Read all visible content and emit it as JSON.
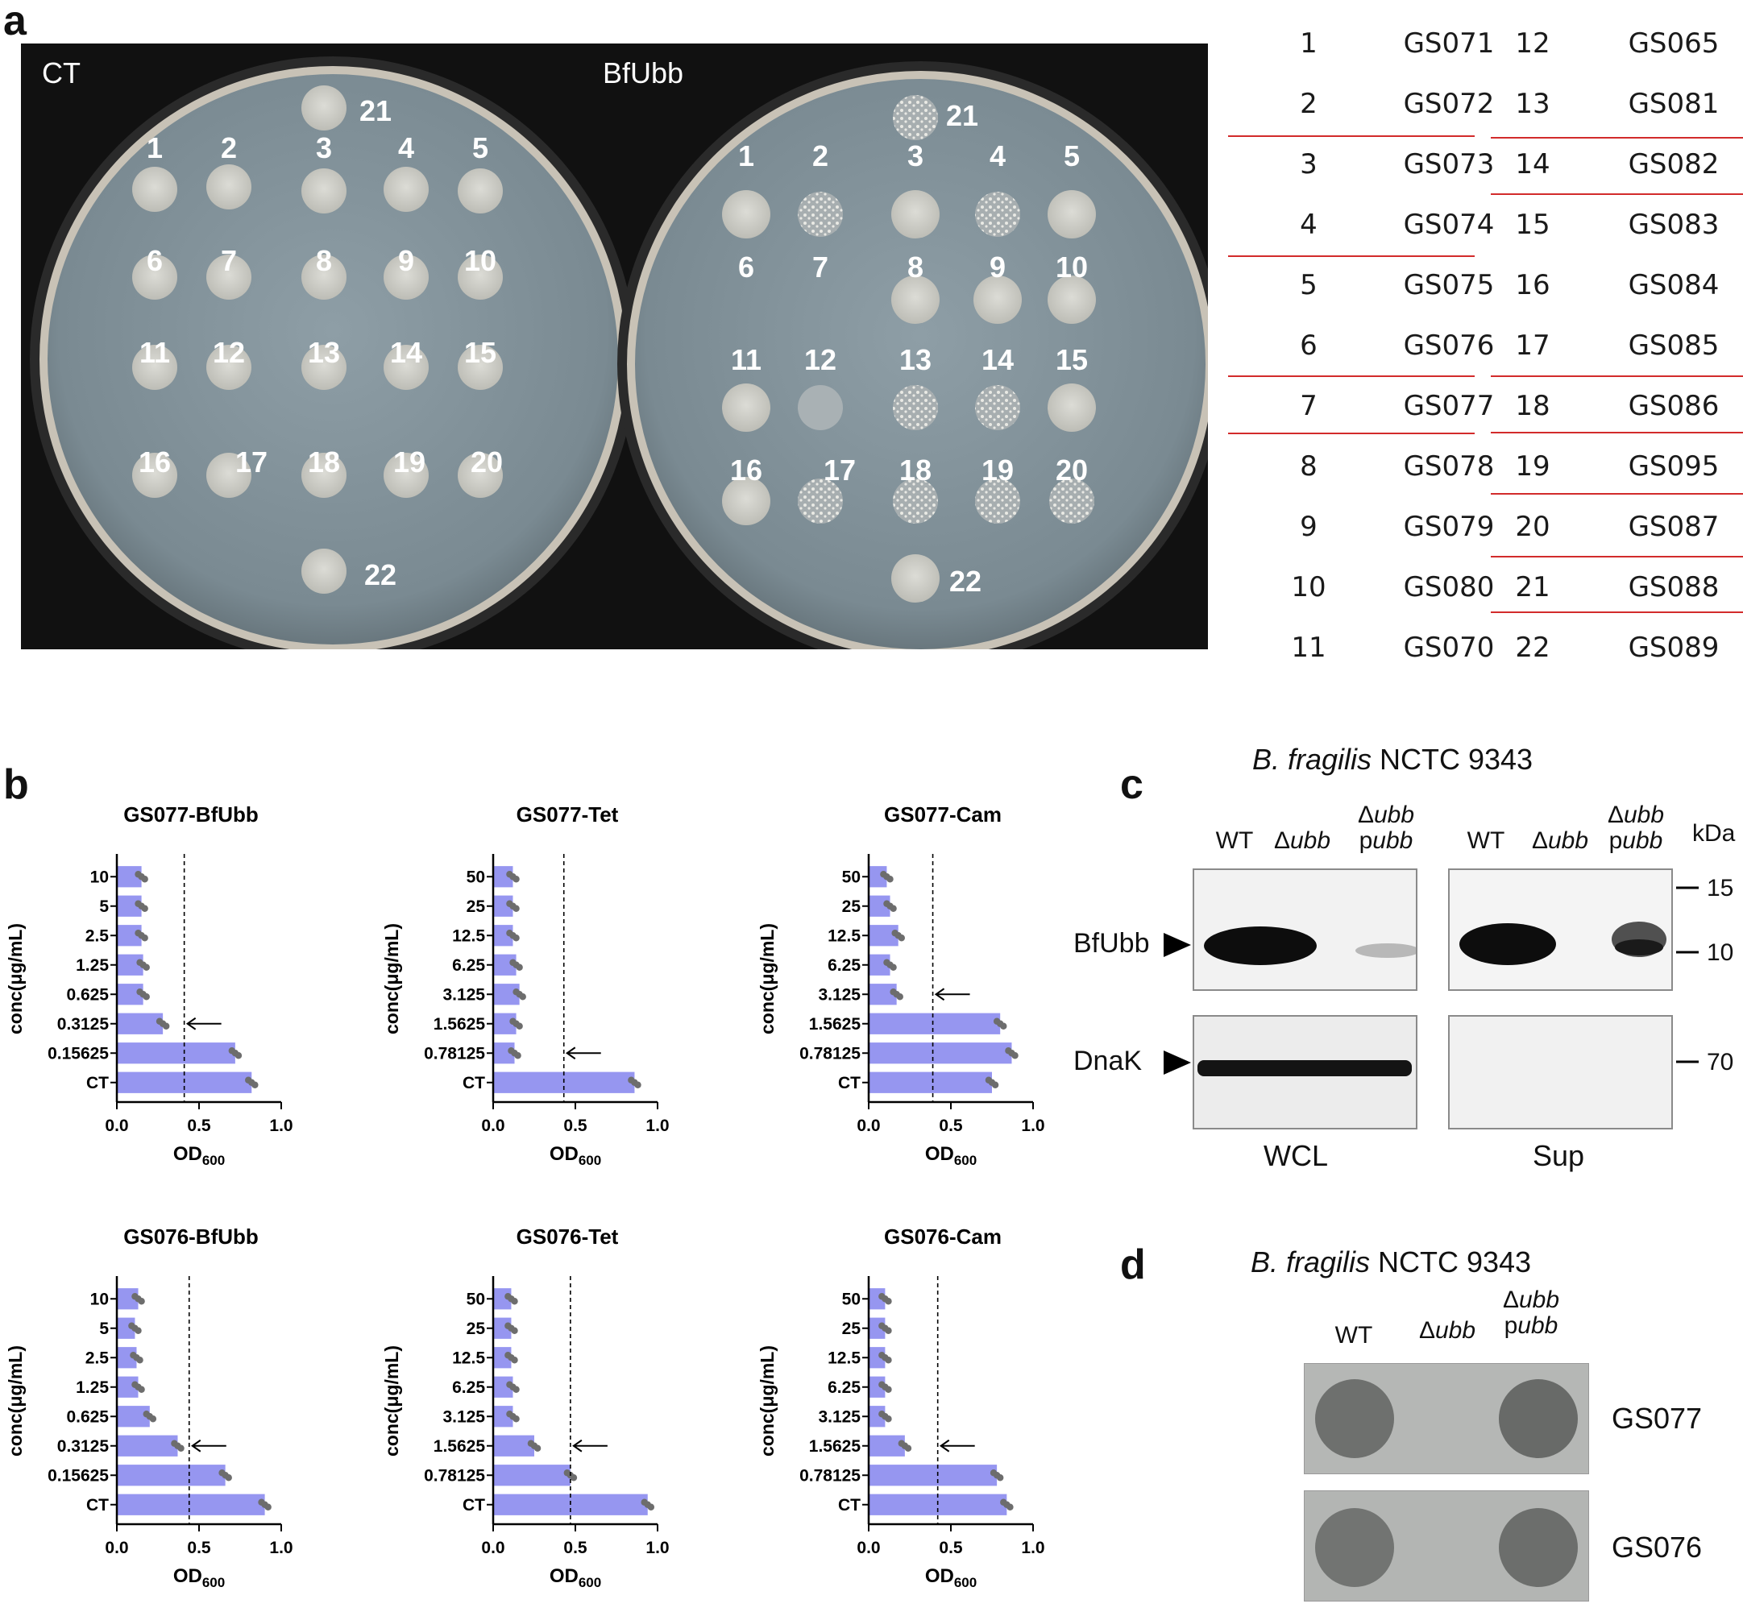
{
  "panels": {
    "a": "a",
    "b": "b",
    "c": "c",
    "d": "d"
  },
  "panel_a": {
    "plate_labels": [
      "CT",
      "BfUbb"
    ],
    "spot_numbers": [
      "1",
      "2",
      "3",
      "4",
      "5",
      "6",
      "7",
      "8",
      "9",
      "10",
      "11",
      "12",
      "13",
      "14",
      "15",
      "16",
      "17",
      "18",
      "19",
      "20",
      "21",
      "22"
    ],
    "legend": [
      {
        "num": "1",
        "id": "GS071"
      },
      {
        "num": "2",
        "id": "GS072"
      },
      {
        "num": "3",
        "id": "GS073"
      },
      {
        "num": "4",
        "id": "GS074"
      },
      {
        "num": "5",
        "id": "GS075"
      },
      {
        "num": "6",
        "id": "GS076"
      },
      {
        "num": "7",
        "id": "GS077"
      },
      {
        "num": "8",
        "id": "GS078"
      },
      {
        "num": "9",
        "id": "GS079"
      },
      {
        "num": "10",
        "id": "GS080"
      },
      {
        "num": "11",
        "id": "GS070"
      },
      {
        "num": "12",
        "id": "GS065"
      },
      {
        "num": "13",
        "id": "GS081"
      },
      {
        "num": "14",
        "id": "GS082"
      },
      {
        "num": "15",
        "id": "GS083"
      },
      {
        "num": "16",
        "id": "GS084"
      },
      {
        "num": "17",
        "id": "GS085"
      },
      {
        "num": "18",
        "id": "GS086"
      },
      {
        "num": "19",
        "id": "GS095"
      },
      {
        "num": "20",
        "id": "GS087"
      },
      {
        "num": "21",
        "id": "GS088"
      },
      {
        "num": "22",
        "id": "GS089"
      }
    ],
    "line_color": "#d22b2b"
  },
  "chart_data": [
    {
      "type": "bar",
      "orientation": "horizontal",
      "title": "GS077-BfUbb",
      "categories": [
        "10",
        "5",
        "2.5",
        "1.25",
        "0.625",
        "0.3125",
        "0.15625",
        "CT"
      ],
      "values": [
        0.15,
        0.15,
        0.15,
        0.16,
        0.16,
        0.28,
        0.72,
        0.82
      ],
      "ylabel": "conc(μg/mL)",
      "xlabel": "OD",
      "xlabel_sub": "600",
      "xlim": [
        0,
        1
      ],
      "xticks": [
        "0.0",
        "0.5",
        "1.0"
      ],
      "threshold": 0.41,
      "arrow_index": 5,
      "bar_color": "#9696f0"
    },
    {
      "type": "bar",
      "orientation": "horizontal",
      "title": "GS077-Tet",
      "categories": [
        "50",
        "25",
        "12.5",
        "6.25",
        "3.125",
        "1.5625",
        "0.78125",
        "CT"
      ],
      "values": [
        0.12,
        0.12,
        0.12,
        0.14,
        0.16,
        0.14,
        0.13,
        0.86
      ],
      "ylabel": "conc(μg/mL)",
      "xlabel": "OD",
      "xlabel_sub": "600",
      "xlim": [
        0,
        1
      ],
      "xticks": [
        "0.0",
        "0.5",
        "1.0"
      ],
      "threshold": 0.43,
      "arrow_index": 6,
      "bar_color": "#9696f0"
    },
    {
      "type": "bar",
      "orientation": "horizontal",
      "title": "GS077-Cam",
      "categories": [
        "50",
        "25",
        "12.5",
        "6.25",
        "3.125",
        "1.5625",
        "0.78125",
        "CT"
      ],
      "values": [
        0.11,
        0.13,
        0.18,
        0.13,
        0.17,
        0.8,
        0.87,
        0.75
      ],
      "ylabel": "conc(μg/mL)",
      "xlabel": "OD",
      "xlabel_sub": "600",
      "xlim": [
        0,
        1
      ],
      "xticks": [
        "0.0",
        "0.5",
        "1.0"
      ],
      "threshold": 0.39,
      "arrow_index": 4,
      "bar_color": "#9696f0"
    },
    {
      "type": "bar",
      "orientation": "horizontal",
      "title": "GS076-BfUbb",
      "categories": [
        "10",
        "5",
        "2.5",
        "1.25",
        "0.625",
        "0.3125",
        "0.15625",
        "CT"
      ],
      "values": [
        0.13,
        0.11,
        0.12,
        0.13,
        0.2,
        0.37,
        0.66,
        0.9
      ],
      "ylabel": "conc(μg/mL)",
      "xlabel": "OD",
      "xlabel_sub": "600",
      "xlim": [
        0,
        1
      ],
      "xticks": [
        "0.0",
        "0.5",
        "1.0"
      ],
      "threshold": 0.44,
      "arrow_index": 5,
      "bar_color": "#9696f0"
    },
    {
      "type": "bar",
      "orientation": "horizontal",
      "title": "GS076-Tet",
      "categories": [
        "50",
        "25",
        "12.5",
        "6.25",
        "3.125",
        "1.5625",
        "0.78125",
        "CT"
      ],
      "values": [
        0.11,
        0.11,
        0.11,
        0.12,
        0.12,
        0.25,
        0.47,
        0.94
      ],
      "ylabel": "conc(μg/mL)",
      "xlabel": "OD",
      "xlabel_sub": "600",
      "xlim": [
        0,
        1
      ],
      "xticks": [
        "0.0",
        "0.5",
        "1.0"
      ],
      "threshold": 0.47,
      "arrow_index": 5,
      "bar_color": "#9696f0"
    },
    {
      "type": "bar",
      "orientation": "horizontal",
      "title": "GS076-Cam",
      "categories": [
        "50",
        "25",
        "12.5",
        "6.25",
        "3.125",
        "1.5625",
        "0.78125",
        "CT"
      ],
      "values": [
        0.1,
        0.1,
        0.1,
        0.1,
        0.1,
        0.22,
        0.78,
        0.84
      ],
      "ylabel": "conc(μg/mL)",
      "xlabel": "OD",
      "xlabel_sub": "600",
      "xlim": [
        0,
        1
      ],
      "xticks": [
        "0.0",
        "0.5",
        "1.0"
      ],
      "threshold": 0.42,
      "arrow_index": 5,
      "bar_color": "#9696f0"
    }
  ],
  "panel_c": {
    "title_italic": "B. fragilis",
    "title_rest": " NCTC 9343",
    "col_wt": "WT",
    "col_delta": "Δ",
    "col_ubb": "ubb",
    "col_p": "p",
    "kda": "kDa",
    "markers": [
      "15",
      "10",
      "70"
    ],
    "row_labels": [
      "BfUbb",
      "DnaK"
    ],
    "bottom_labels": [
      "WCL",
      "Sup"
    ]
  },
  "panel_d": {
    "title_italic": "B. fragilis",
    "title_rest": " NCTC 9343",
    "col_wt": "WT",
    "col_delta": "Δ",
    "col_ubb": "ubb",
    "col_p": "p",
    "row_labels": [
      "GS077",
      "GS076"
    ]
  }
}
